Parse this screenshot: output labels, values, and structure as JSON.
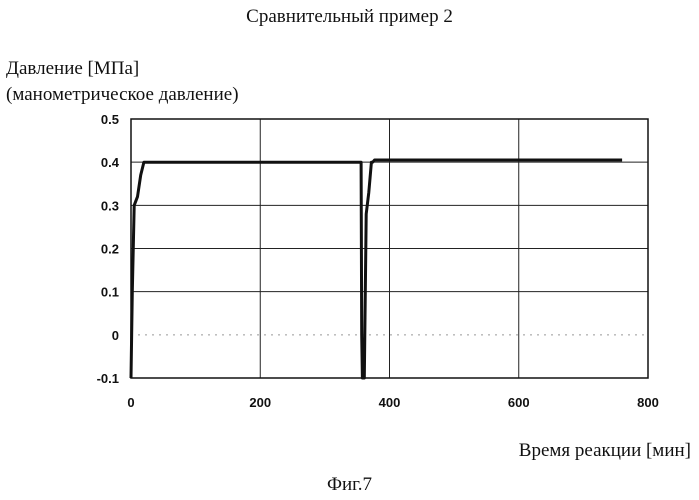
{
  "figure": {
    "title": "Сравнительный пример 2",
    "ylabel_line1": "Давление [МПа]",
    "ylabel_line2": "(манометрическое давление)",
    "xlabel": "Время реакции [мин]",
    "caption": "Фиг.7"
  },
  "chart_data": {
    "type": "line",
    "title": "Сравнительный пример 2",
    "xlabel": "Время реакции [мин]",
    "ylabel": "Давление [МПа] (манометрическое давление)",
    "xlim": [
      0,
      800
    ],
    "ylim": [
      -0.1,
      0.5
    ],
    "xticks": [
      "0",
      "200",
      "400",
      "600",
      "800"
    ],
    "yticks": [
      "-0.1",
      "0",
      "0.1",
      "0.2",
      "0.3",
      "0.4",
      "0.5"
    ],
    "grid": true,
    "x": [
      0,
      2,
      5,
      10,
      15,
      20,
      60,
      120,
      200,
      300,
      355,
      356,
      357,
      358,
      361,
      364,
      368,
      372,
      374,
      377,
      380,
      450,
      550,
      650,
      760
    ],
    "values": [
      -0.1,
      0.1,
      0.3,
      0.32,
      0.37,
      0.4,
      0.4,
      0.4,
      0.4,
      0.4,
      0.4,
      0.4,
      0.0,
      -0.1,
      -0.1,
      0.28,
      0.33,
      0.4,
      0.4,
      0.405,
      0.405,
      0.405,
      0.405,
      0.405,
      0.405
    ],
    "colors": {
      "line": "#111111",
      "grid": "#222222"
    }
  }
}
